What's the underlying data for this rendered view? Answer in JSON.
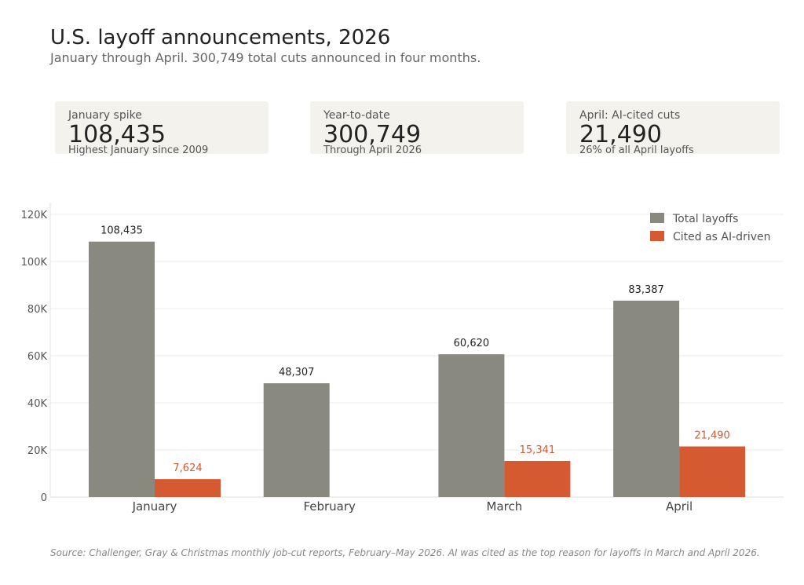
{
  "header": {
    "title": "U.S. layoff announcements, 2026",
    "subtitle": "January through April. 300,749 total cuts announced in four months."
  },
  "kpis": [
    {
      "label": "January spike",
      "value": "108,435",
      "note": "Highest January since 2009"
    },
    {
      "label": "Year-to-date",
      "value": "300,749",
      "note": "Through April 2026"
    },
    {
      "label": "April: AI-cited cuts",
      "value": "21,490",
      "note": "26% of all April layoffs"
    }
  ],
  "chart_data": {
    "type": "bar",
    "categories": [
      "January",
      "February",
      "March",
      "April"
    ],
    "series": [
      {
        "name": "Total layoffs",
        "color": "#8a8980",
        "values": [
          108435,
          48307,
          60620,
          83387
        ],
        "labels": [
          "108,435",
          "48,307",
          "60,620",
          "83,387"
        ]
      },
      {
        "name": "Cited as AI-driven",
        "color": "#d65a31",
        "values": [
          7624,
          null,
          15341,
          21490
        ],
        "labels": [
          "7,624",
          "",
          "15,341",
          "21,490"
        ]
      }
    ],
    "ylim": [
      0,
      125000
    ],
    "yticks": [
      0,
      20000,
      40000,
      60000,
      80000,
      100000,
      120000
    ],
    "ytick_labels": [
      "0",
      "20K",
      "40K",
      "60K",
      "80K",
      "100K",
      "120K"
    ],
    "grid": true,
    "legend": "top-right"
  },
  "footer": {
    "source": "Source: Challenger, Gray & Christmas monthly job-cut reports, February–May 2026. AI was cited as the top reason for layoffs in March and April 2026."
  }
}
